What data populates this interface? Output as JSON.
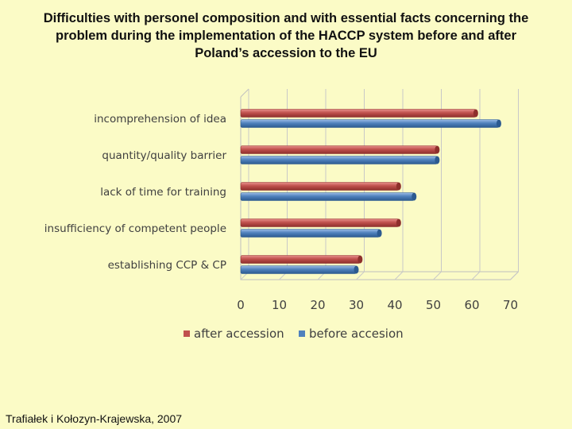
{
  "slide": {
    "title_lines": [
      "Difficulties with personel composition and with essential facts concerning the",
      "problem during the implementation of the HACCP system before and after",
      "Poland’s accession to the EU"
    ],
    "footer": "Trafiałek i Kołozyn-Krajewska, 2007"
  },
  "chart_data": {
    "type": "bar",
    "orientation": "horizontal",
    "categories": [
      "incomprehension of idea",
      "quantity/quality barrier",
      "lack of time for training",
      "insufficiency of competent people",
      "establishing CCP & CP"
    ],
    "series": [
      {
        "name": "after accession",
        "color": "#c0504d",
        "values": [
          61,
          51,
          41,
          41,
          31
        ]
      },
      {
        "name": "before accesion",
        "color": "#4f81bd",
        "values": [
          67,
          51,
          45,
          36,
          30
        ]
      }
    ],
    "xlim": [
      0,
      70
    ],
    "xticks": [
      "0",
      "10",
      "20",
      "30",
      "40",
      "50",
      "60",
      "70"
    ],
    "grid": true,
    "legend_position": "bottom",
    "style": "3d"
  }
}
